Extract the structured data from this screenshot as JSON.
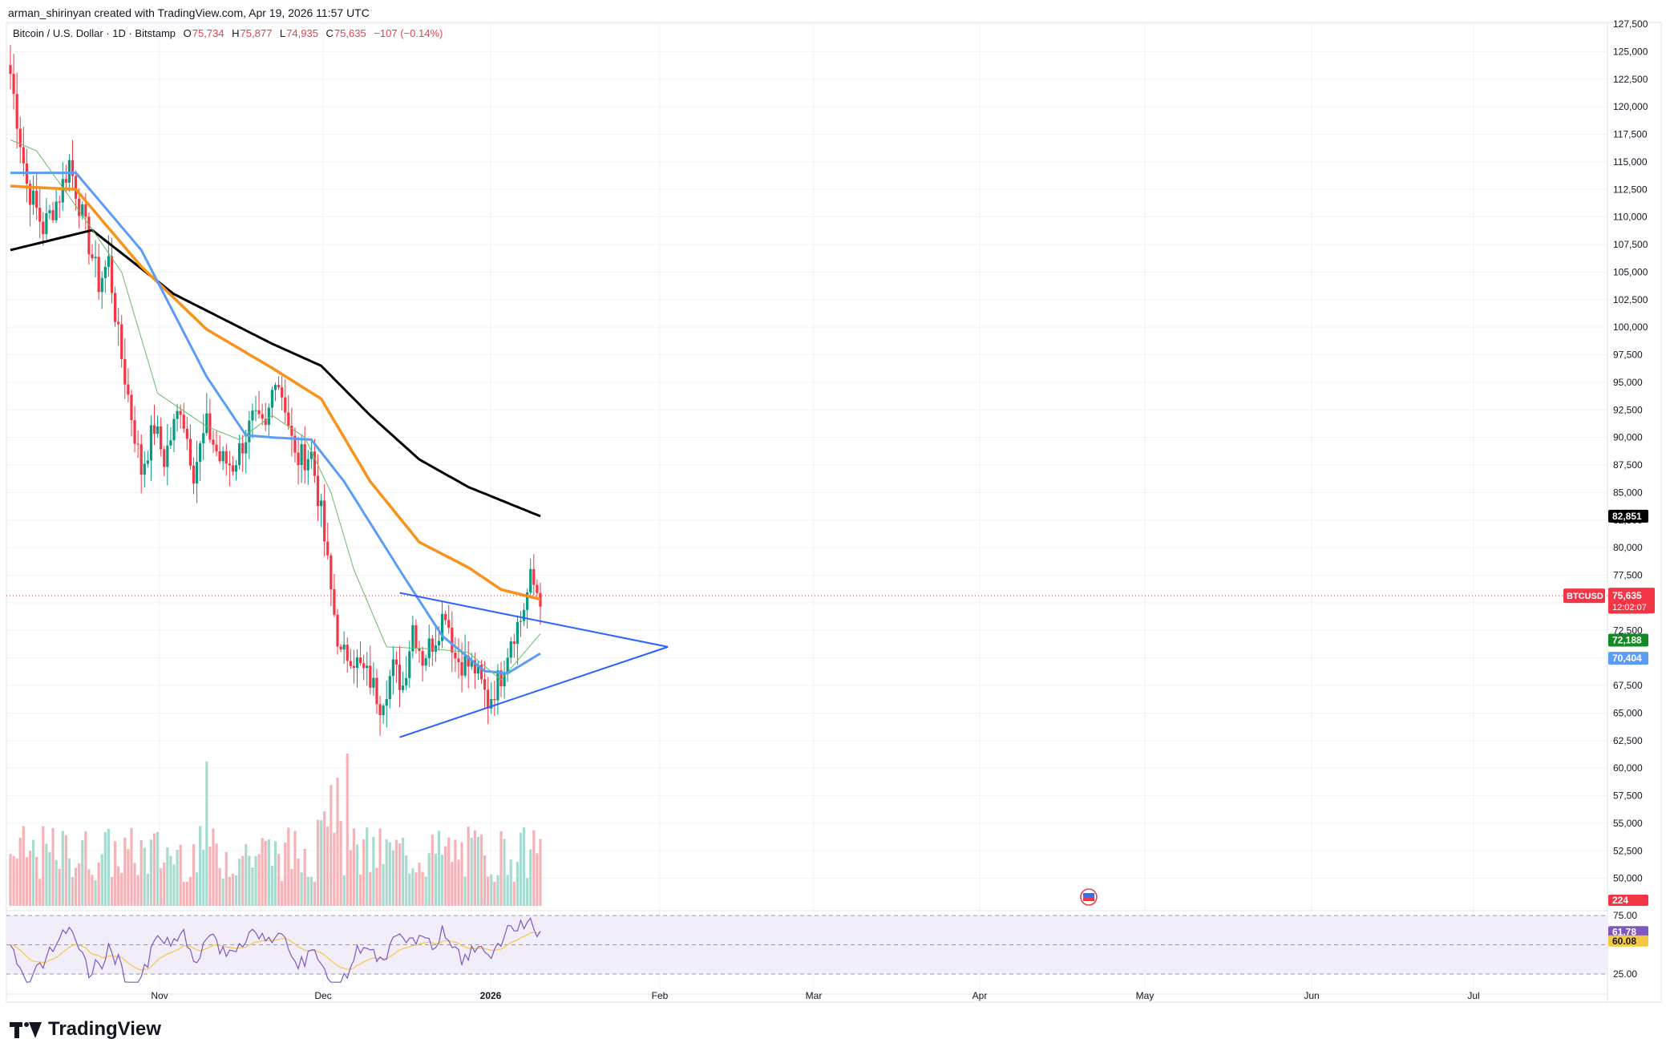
{
  "header": {
    "author_line": "arman_shirinyan created with TradingView.com, Apr 19, 2026 11:57 UTC",
    "symbol": "Bitcoin / U.S. Dollar · 1D · Bitstamp",
    "ohlc": {
      "o_label": "O",
      "o": "75,734",
      "h_label": "H",
      "h": "75,877",
      "l_label": "L",
      "l": "74,935",
      "c_label": "C",
      "c": "75,635",
      "change": "−107 (−0.14%)"
    }
  },
  "brand": {
    "name": "TradingView"
  },
  "chart_data": {
    "type": "candlestick",
    "symbol": "BTCUSD",
    "timeframe": "1D",
    "x_tick_labels": [
      "Nov",
      "Dec",
      "2026",
      "Feb",
      "Mar",
      "Apr",
      "May",
      "Jun",
      "Jul"
    ],
    "price_axis": {
      "ylim": [
        47500,
        127500
      ],
      "ticks": [
        50000,
        52500,
        55000,
        57500,
        60000,
        62500,
        65000,
        67500,
        70000,
        72500,
        75000,
        77500,
        80000,
        82500,
        85000,
        87500,
        90000,
        92500,
        95000,
        97500,
        100000,
        102500,
        105000,
        107500,
        110000,
        112500,
        115000,
        117500,
        120000,
        122500,
        125000,
        127500
      ],
      "tick_labels": [
        "50,000",
        "52,500",
        "55,000",
        "57,500",
        "60,000",
        "62,500",
        "65,000",
        "67,500",
        "70,000",
        "72,500",
        "75,000",
        "77,500",
        "80,000",
        "82,500",
        "85,000",
        "87,500",
        "90,000",
        "92,500",
        "95,000",
        "97,500",
        "100,000",
        "102,500",
        "105,000",
        "107,500",
        "110,000",
        "112,500",
        "115,000",
        "117,500",
        "120,000",
        "122,500",
        "125,000",
        "127,500"
      ],
      "grid": true
    },
    "candles_close_anchors": [
      [
        0,
        123000
      ],
      [
        5,
        113000
      ],
      [
        10,
        109000
      ],
      [
        15,
        112000
      ],
      [
        18,
        115000
      ],
      [
        22,
        110000
      ],
      [
        27,
        104000
      ],
      [
        30,
        106000
      ],
      [
        33,
        99000
      ],
      [
        37,
        92000
      ],
      [
        40,
        87000
      ],
      [
        44,
        91000
      ],
      [
        47,
        88000
      ],
      [
        52,
        93000
      ],
      [
        56,
        87000
      ],
      [
        60,
        91000
      ],
      [
        64,
        88000
      ],
      [
        68,
        87500
      ],
      [
        74,
        91500
      ],
      [
        78,
        90500
      ],
      [
        81,
        96000
      ],
      [
        84,
        93000
      ],
      [
        87,
        88000
      ],
      [
        92,
        88500
      ],
      [
        95,
        83000
      ],
      [
        98,
        76000
      ],
      [
        101,
        70000
      ],
      [
        104,
        70500
      ],
      [
        107,
        69000
      ],
      [
        110,
        68000
      ],
      [
        113,
        66000
      ],
      [
        117,
        69000
      ],
      [
        120,
        67500
      ],
      [
        123,
        73000
      ],
      [
        126,
        70000
      ],
      [
        130,
        72000
      ],
      [
        133,
        74500
      ],
      [
        136,
        70000
      ],
      [
        139,
        69500
      ],
      [
        142,
        69000
      ],
      [
        146,
        66000
      ],
      [
        150,
        68500
      ],
      [
        153,
        72000
      ],
      [
        156,
        73500
      ],
      [
        159,
        77000
      ],
      [
        162,
        75635
      ]
    ],
    "moving_averages": [
      {
        "color": "#000000",
        "last_value": "82,851",
        "anchors": [
          [
            0,
            107000
          ],
          [
            25,
            108800
          ],
          [
            50,
            103000
          ],
          [
            80,
            98500
          ],
          [
            95,
            96500
          ],
          [
            110,
            92000
          ],
          [
            125,
            88000
          ],
          [
            140,
            85500
          ],
          [
            162,
            82851
          ]
        ]
      },
      {
        "color": "#f7931a",
        "last_value": "75,312",
        "anchors": [
          [
            0,
            112800
          ],
          [
            20,
            112500
          ],
          [
            40,
            105500
          ],
          [
            60,
            99800
          ],
          [
            80,
            96300
          ],
          [
            95,
            93500
          ],
          [
            110,
            86000
          ],
          [
            125,
            80500
          ],
          [
            140,
            78200
          ],
          [
            150,
            76200
          ],
          [
            162,
            75312
          ]
        ]
      },
      {
        "color": "#5b9cf6",
        "last_value": "70,404",
        "anchors": [
          [
            0,
            114000
          ],
          [
            20,
            114000
          ],
          [
            40,
            107000
          ],
          [
            60,
            95500
          ],
          [
            72,
            90200
          ],
          [
            80,
            90000
          ],
          [
            92,
            89800
          ],
          [
            102,
            86000
          ],
          [
            120,
            77500
          ],
          [
            132,
            72000
          ],
          [
            145,
            68800
          ],
          [
            152,
            68600
          ],
          [
            162,
            70404
          ]
        ]
      },
      {
        "color": "#66bb6a",
        "last_value": "72,188",
        "anchors": [
          [
            0,
            117000
          ],
          [
            8,
            116000
          ],
          [
            20,
            111000
          ],
          [
            34,
            105000
          ],
          [
            45,
            94000
          ],
          [
            60,
            91000
          ],
          [
            70,
            89800
          ],
          [
            80,
            92000
          ],
          [
            90,
            90000
          ],
          [
            98,
            85000
          ],
          [
            105,
            78000
          ],
          [
            115,
            71000
          ],
          [
            130,
            70800
          ],
          [
            140,
            70500
          ],
          [
            150,
            68000
          ],
          [
            162,
            72188
          ]
        ]
      }
    ],
    "triangle_lines": [
      {
        "color": "#2962ff",
        "from": [
          119,
          75900
        ],
        "to": [
          201,
          71000
        ]
      },
      {
        "color": "#2962ff",
        "from": [
          119,
          62800
        ],
        "to": [
          201,
          71000
        ]
      }
    ],
    "current_price": {
      "label": "BTCUSD",
      "value": "75,635",
      "countdown": "12:02:07",
      "price": 75635,
      "color": "#f23645"
    },
    "volume_last": "224",
    "rsi": {
      "ylim": [
        25,
        75
      ],
      "levels": [
        75,
        50,
        25
      ],
      "tick_labels": [
        "75.00",
        "25.00"
      ],
      "value": "61.78",
      "ma_value": "60.08",
      "line_color": "#7e57c2",
      "ma_color": "#f5c842",
      "band_color": "#ede7f6"
    },
    "colors": {
      "up": "#089981",
      "down": "#f23645"
    }
  }
}
